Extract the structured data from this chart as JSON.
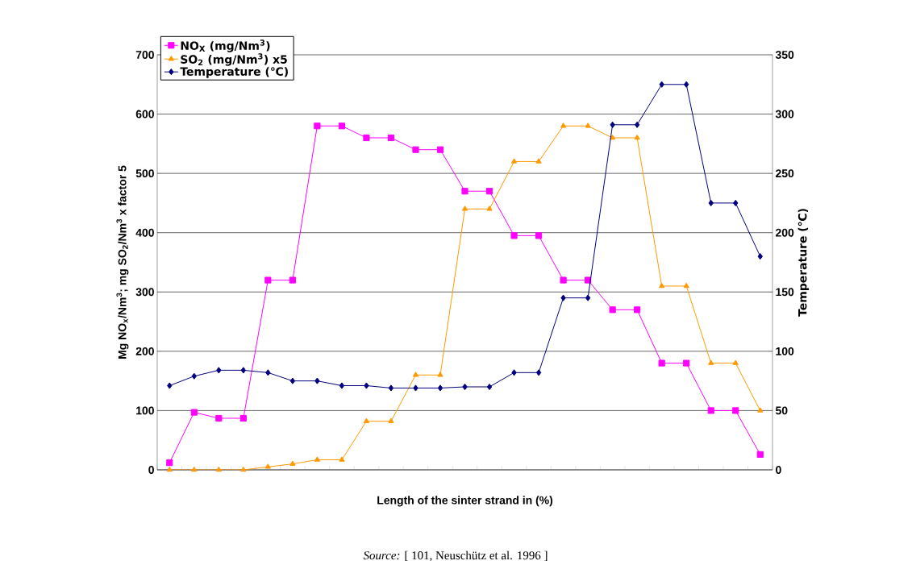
{
  "chart_data": {
    "type": "line",
    "xlabel": "Length of the sinter strand in (%)",
    "ylabel": "Mg NO$_{x}$/Nm$^{3}$; mg SO$_{2}$/Nm$^{3}$ x factor 5",
    "y2label": "Temperature (℃)",
    "annotations": [
      "*Source:* [ 101, Neuschütz et al. 1996 ]"
    ],
    "categories": [
      null,
      null,
      null,
      null,
      null,
      null,
      null,
      null,
      null,
      null,
      null,
      null,
      null,
      null,
      null,
      null,
      null,
      null,
      null,
      null,
      null,
      null,
      null,
      null,
      null
    ],
    "series": [
      {
        "name": "NO$_{X}$ (mg/Nm$^{3}$)",
        "color": "#ff00ff",
        "marker": "square",
        "values": [
          12,
          97,
          87,
          87,
          320,
          320,
          580,
          580,
          560,
          560,
          540,
          540,
          470,
          470,
          395,
          395,
          320,
          320,
          270,
          270,
          180,
          180,
          100,
          100,
          26
        ]
      },
      {
        "name": "SO$_{2}$ (mg/Nm$^{3}$) x5",
        "color": "#ff9900",
        "marker": "triangle",
        "values": [
          0,
          0,
          0,
          0,
          5,
          10,
          17,
          17,
          82,
          82,
          160,
          160,
          440,
          440,
          520,
          520,
          580,
          580,
          560,
          560,
          310,
          310,
          180,
          180,
          100
        ]
      },
      {
        "name": "Temperature (℃)",
        "color": "#000080",
        "marker": "diamond",
        "axis": "y2",
        "values": [
          71,
          79,
          84,
          84,
          82,
          75,
          75,
          71,
          71,
          69,
          69,
          69,
          70,
          70,
          82,
          82,
          145,
          145,
          291,
          291,
          325,
          325,
          225,
          225,
          180
        ]
      }
    ],
    "ylim": [
      0,
      700
    ],
    "yticks": [
      0,
      100,
      200,
      300,
      400,
      500,
      600,
      700
    ],
    "y2lim": [
      0,
      350
    ],
    "y2ticks": [
      0,
      50,
      100,
      150,
      200,
      250,
      300,
      350
    ],
    "grid": "y",
    "legend": "top left",
    "line_style": "solid"
  }
}
